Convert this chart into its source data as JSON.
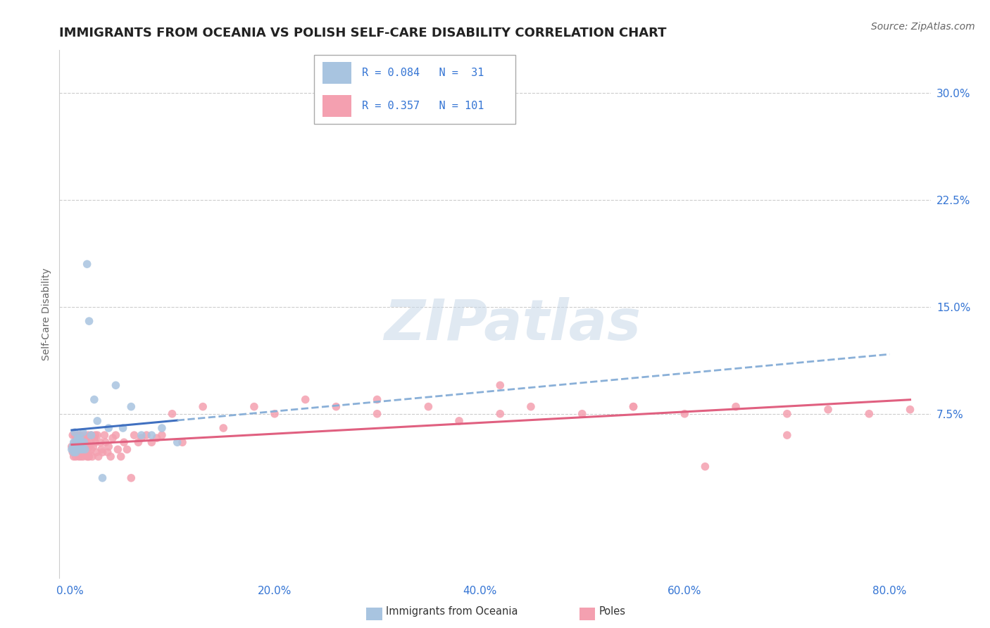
{
  "title": "IMMIGRANTS FROM OCEANIA VS POLISH SELF-CARE DISABILITY CORRELATION CHART",
  "source": "Source: ZipAtlas.com",
  "ylabel": "Self-Care Disability",
  "xlabel_ticks": [
    "0.0%",
    "20.0%",
    "40.0%",
    "60.0%",
    "80.0%"
  ],
  "xlabel_vals": [
    0.0,
    0.2,
    0.4,
    0.6,
    0.8
  ],
  "ylabel_ticks": [
    "7.5%",
    "15.0%",
    "22.5%",
    "30.0%"
  ],
  "ylabel_vals": [
    0.075,
    0.15,
    0.225,
    0.3
  ],
  "xlim": [
    -0.01,
    0.84
  ],
  "ylim": [
    -0.04,
    0.33
  ],
  "R_oceania": 0.084,
  "N_oceania": 31,
  "R_poles": 0.357,
  "N_poles": 101,
  "color_oceania": "#a8c4e0",
  "color_poles": "#f4a0b0",
  "line_color_oceania_solid": "#4070c0",
  "line_color_oceania_dash": "#8ab0d8",
  "line_color_poles": "#e06080",
  "background_color": "#ffffff",
  "grid_color": "#cccccc",
  "title_fontsize": 13,
  "axis_label_fontsize": 10,
  "tick_fontsize": 11,
  "source_fontsize": 10,
  "legend_color": "#3575d4",
  "oceania_x": [
    0.002,
    0.003,
    0.004,
    0.004,
    0.005,
    0.005,
    0.006,
    0.007,
    0.008,
    0.009,
    0.01,
    0.01,
    0.011,
    0.012,
    0.013,
    0.014,
    0.015,
    0.017,
    0.019,
    0.021,
    0.024,
    0.027,
    0.032,
    0.038,
    0.045,
    0.052,
    0.06,
    0.07,
    0.08,
    0.09,
    0.105
  ],
  "oceania_y": [
    0.05,
    0.052,
    0.048,
    0.055,
    0.05,
    0.062,
    0.048,
    0.055,
    0.058,
    0.052,
    0.05,
    0.058,
    0.055,
    0.05,
    0.062,
    0.055,
    0.05,
    0.18,
    0.14,
    0.06,
    0.085,
    0.07,
    0.03,
    0.065,
    0.095,
    0.065,
    0.08,
    0.06,
    0.06,
    0.065,
    0.055
  ],
  "poles_x": [
    0.002,
    0.003,
    0.003,
    0.004,
    0.004,
    0.005,
    0.005,
    0.005,
    0.006,
    0.006,
    0.006,
    0.007,
    0.007,
    0.007,
    0.008,
    0.008,
    0.008,
    0.009,
    0.009,
    0.01,
    0.01,
    0.01,
    0.01,
    0.011,
    0.011,
    0.012,
    0.012,
    0.013,
    0.013,
    0.014,
    0.014,
    0.015,
    0.015,
    0.016,
    0.016,
    0.017,
    0.017,
    0.018,
    0.018,
    0.019,
    0.019,
    0.02,
    0.021,
    0.021,
    0.022,
    0.023,
    0.024,
    0.025,
    0.026,
    0.027,
    0.028,
    0.03,
    0.031,
    0.032,
    0.034,
    0.035,
    0.037,
    0.038,
    0.04,
    0.042,
    0.045,
    0.047,
    0.05,
    0.053,
    0.056,
    0.06,
    0.063,
    0.067,
    0.07,
    0.075,
    0.08,
    0.085,
    0.09,
    0.1,
    0.11,
    0.13,
    0.15,
    0.18,
    0.2,
    0.23,
    0.26,
    0.3,
    0.35,
    0.38,
    0.42,
    0.45,
    0.5,
    0.55,
    0.6,
    0.65,
    0.7,
    0.74,
    0.78,
    0.82,
    0.42,
    0.3,
    0.55,
    0.62,
    0.7,
    0.025,
    0.018
  ],
  "poles_y": [
    0.052,
    0.048,
    0.06,
    0.05,
    0.045,
    0.055,
    0.05,
    0.06,
    0.048,
    0.055,
    0.045,
    0.05,
    0.058,
    0.052,
    0.048,
    0.055,
    0.06,
    0.045,
    0.055,
    0.05,
    0.048,
    0.055,
    0.06,
    0.045,
    0.052,
    0.05,
    0.058,
    0.055,
    0.045,
    0.052,
    0.06,
    0.048,
    0.055,
    0.05,
    0.058,
    0.045,
    0.055,
    0.048,
    0.06,
    0.052,
    0.045,
    0.055,
    0.05,
    0.06,
    0.045,
    0.052,
    0.058,
    0.055,
    0.048,
    0.06,
    0.045,
    0.055,
    0.05,
    0.048,
    0.06,
    0.055,
    0.048,
    0.052,
    0.045,
    0.058,
    0.06,
    0.05,
    0.045,
    0.055,
    0.05,
    0.03,
    0.06,
    0.055,
    0.058,
    0.06,
    0.055,
    0.058,
    0.06,
    0.075,
    0.055,
    0.08,
    0.065,
    0.08,
    0.075,
    0.085,
    0.08,
    0.075,
    0.08,
    0.07,
    0.075,
    0.08,
    0.075,
    0.08,
    0.075,
    0.08,
    0.075,
    0.078,
    0.075,
    0.078,
    0.095,
    0.085,
    0.08,
    0.038,
    0.06,
    0.06,
    0.045
  ]
}
